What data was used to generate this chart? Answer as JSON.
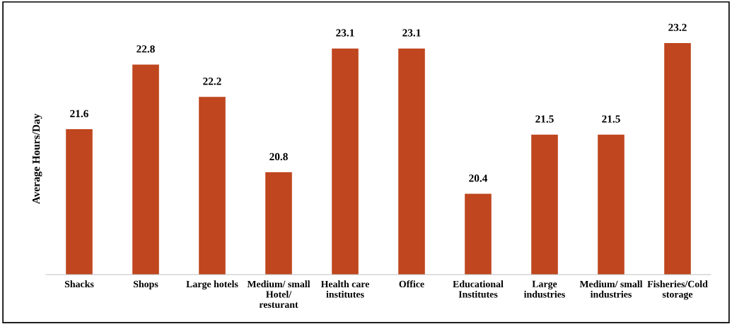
{
  "chart_data": {
    "type": "bar",
    "ylabel": "Average Hours/Day",
    "categories": [
      "Shacks",
      "Shops",
      "Large hotels",
      "Medium/ small\nHotel/\nresturant",
      "Health care\ninstitutes",
      "Office",
      "Educational\nInstitutes",
      "Large\nindustries",
      "Medium/ small\nindustries",
      "Fisheries/Cold\nstorage"
    ],
    "values": [
      21.6,
      22.8,
      22.2,
      20.8,
      23.1,
      23.1,
      20.4,
      21.5,
      21.5,
      23.2
    ],
    "color": "#bf461e",
    "ylim": [
      18.9,
      23.2
    ],
    "data_labels": true,
    "tick_labels": "x",
    "grid": false,
    "legend": false
  }
}
